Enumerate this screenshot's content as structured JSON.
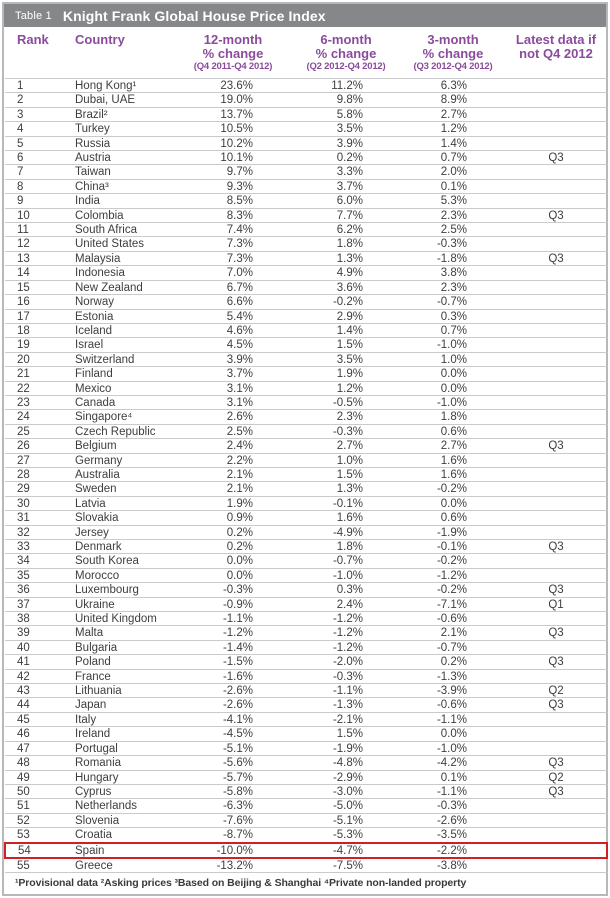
{
  "table": {
    "tag": "Table 1",
    "title": "Knight Frank Global House Price Index",
    "columns": {
      "rank": "Rank",
      "country": "Country",
      "c12": {
        "line1": "12-month",
        "line2": "% change",
        "period": "(Q4 2011-Q4 2012)"
      },
      "c6": {
        "line1": "6-month",
        "line2": "% change",
        "period": "(Q2 2012-Q4 2012)"
      },
      "c3": {
        "line1": "3-month",
        "line2": "% change",
        "period": "(Q3 2012-Q4 2012)"
      },
      "latest": {
        "line1": "Latest data if",
        "line2": "not Q4 2012"
      }
    },
    "highlight_rank": 54,
    "rows": [
      [
        "1",
        "Hong Kong¹",
        "23.6%",
        "11.2%",
        "6.3%",
        ""
      ],
      [
        "2",
        "Dubai, UAE",
        "19.0%",
        "9.8%",
        "8.9%",
        ""
      ],
      [
        "3",
        "Brazil²",
        "13.7%",
        "5.8%",
        "2.7%",
        ""
      ],
      [
        "4",
        "Turkey",
        "10.5%",
        "3.5%",
        "1.2%",
        ""
      ],
      [
        "5",
        "Russia",
        "10.2%",
        "3.9%",
        "1.4%",
        ""
      ],
      [
        "6",
        "Austria",
        "10.1%",
        "0.2%",
        "0.7%",
        "Q3"
      ],
      [
        "7",
        "Taiwan",
        "9.7%",
        "3.3%",
        "2.0%",
        ""
      ],
      [
        "8",
        "China³",
        "9.3%",
        "3.7%",
        "0.1%",
        ""
      ],
      [
        "9",
        "India",
        "8.5%",
        "6.0%",
        "5.3%",
        ""
      ],
      [
        "10",
        "Colombia",
        "8.3%",
        "7.7%",
        "2.3%",
        "Q3"
      ],
      [
        "11",
        "South Africa",
        "7.4%",
        "6.2%",
        "2.5%",
        ""
      ],
      [
        "12",
        "United States",
        "7.3%",
        "1.8%",
        "-0.3%",
        ""
      ],
      [
        "13",
        "Malaysia",
        "7.3%",
        "1.3%",
        "-1.8%",
        "Q3"
      ],
      [
        "14",
        "Indonesia",
        "7.0%",
        "4.9%",
        "3.8%",
        ""
      ],
      [
        "15",
        "New Zealand",
        "6.7%",
        "3.6%",
        "2.3%",
        ""
      ],
      [
        "16",
        "Norway",
        "6.6%",
        "-0.2%",
        "-0.7%",
        ""
      ],
      [
        "17",
        "Estonia",
        "5.4%",
        "2.9%",
        "0.3%",
        ""
      ],
      [
        "18",
        "Iceland",
        "4.6%",
        "1.4%",
        "0.7%",
        ""
      ],
      [
        "19",
        "Israel",
        "4.5%",
        "1.5%",
        "-1.0%",
        ""
      ],
      [
        "20",
        "Switzerland",
        "3.9%",
        "3.5%",
        "1.0%",
        ""
      ],
      [
        "21",
        "Finland",
        "3.7%",
        "1.9%",
        "0.0%",
        ""
      ],
      [
        "22",
        "Mexico",
        "3.1%",
        "1.2%",
        "0.0%",
        ""
      ],
      [
        "23",
        "Canada",
        "3.1%",
        "-0.5%",
        "-1.0%",
        ""
      ],
      [
        "24",
        "Singapore⁴",
        "2.6%",
        "2.3%",
        "1.8%",
        ""
      ],
      [
        "25",
        "Czech Republic",
        "2.5%",
        "-0.3%",
        "0.6%",
        ""
      ],
      [
        "26",
        "Belgium",
        "2.4%",
        "2.7%",
        "2.7%",
        "Q3"
      ],
      [
        "27",
        "Germany",
        "2.2%",
        "1.0%",
        "1.6%",
        ""
      ],
      [
        "28",
        "Australia",
        "2.1%",
        "1.5%",
        "1.6%",
        ""
      ],
      [
        "29",
        "Sweden",
        "2.1%",
        "1.3%",
        "-0.2%",
        ""
      ],
      [
        "30",
        "Latvia",
        "1.9%",
        "-0.1%",
        "0.0%",
        ""
      ],
      [
        "31",
        "Slovakia",
        "0.9%",
        "1.6%",
        "0.6%",
        ""
      ],
      [
        "32",
        "Jersey",
        "0.2%",
        "-4.9%",
        "-1.9%",
        ""
      ],
      [
        "33",
        "Denmark",
        "0.2%",
        "1.8%",
        "-0.1%",
        "Q3"
      ],
      [
        "34",
        "South Korea",
        "0.0%",
        "-0.7%",
        "-0.2%",
        ""
      ],
      [
        "35",
        "Morocco",
        "0.0%",
        "-1.0%",
        "-1.2%",
        ""
      ],
      [
        "36",
        "Luxembourg",
        "-0.3%",
        "0.3%",
        "-0.2%",
        "Q3"
      ],
      [
        "37",
        "Ukraine",
        "-0.9%",
        "2.4%",
        "-7.1%",
        "Q1"
      ],
      [
        "38",
        "United Kingdom",
        "-1.1%",
        "-1.2%",
        "-0.6%",
        ""
      ],
      [
        "39",
        "Malta",
        "-1.2%",
        "-1.2%",
        "2.1%",
        "Q3"
      ],
      [
        "40",
        "Bulgaria",
        "-1.4%",
        "-1.2%",
        "-0.7%",
        ""
      ],
      [
        "41",
        "Poland",
        "-1.5%",
        "-2.0%",
        "0.2%",
        "Q3"
      ],
      [
        "42",
        "France",
        "-1.6%",
        "-0.3%",
        "-1.3%",
        ""
      ],
      [
        "43",
        "Lithuania",
        "-2.6%",
        "-1.1%",
        "-3.9%",
        "Q2"
      ],
      [
        "44",
        "Japan",
        "-2.6%",
        "-1.3%",
        "-0.6%",
        "Q3"
      ],
      [
        "45",
        "Italy",
        "-4.1%",
        "-2.1%",
        "-1.1%",
        ""
      ],
      [
        "46",
        "Ireland",
        "-4.5%",
        "1.5%",
        "0.0%",
        ""
      ],
      [
        "47",
        "Portugal",
        "-5.1%",
        "-1.9%",
        "-1.0%",
        ""
      ],
      [
        "48",
        "Romania",
        "-5.6%",
        "-4.8%",
        "-4.2%",
        "Q3"
      ],
      [
        "49",
        "Hungary",
        "-5.7%",
        "-2.9%",
        "0.1%",
        "Q2"
      ],
      [
        "50",
        "Cyprus",
        "-5.8%",
        "-3.0%",
        "-1.1%",
        "Q3"
      ],
      [
        "51",
        "Netherlands",
        "-6.3%",
        "-5.0%",
        "-0.3%",
        ""
      ],
      [
        "52",
        "Slovenia",
        "-7.6%",
        "-5.1%",
        "-2.6%",
        ""
      ],
      [
        "53",
        "Croatia",
        "-8.7%",
        "-5.3%",
        "-3.5%",
        ""
      ],
      [
        "54",
        "Spain",
        "-10.0%",
        "-4.7%",
        "-2.2%",
        ""
      ],
      [
        "55",
        "Greece",
        "-13.2%",
        "-7.5%",
        "-3.8%",
        ""
      ]
    ],
    "footnote": "¹Provisional data ²Asking prices ³Based on Beijing & Shanghai ⁴Private non-landed property"
  },
  "colors": {
    "titlebar_bg": "#85878a",
    "titlebar_text": "#ffffff",
    "header_purple": "#8a4b9d",
    "body_text": "#3e3e40",
    "row_line": "#c9cacb",
    "frame_border": "#b6b8ba",
    "highlight_red": "#d02024"
  }
}
